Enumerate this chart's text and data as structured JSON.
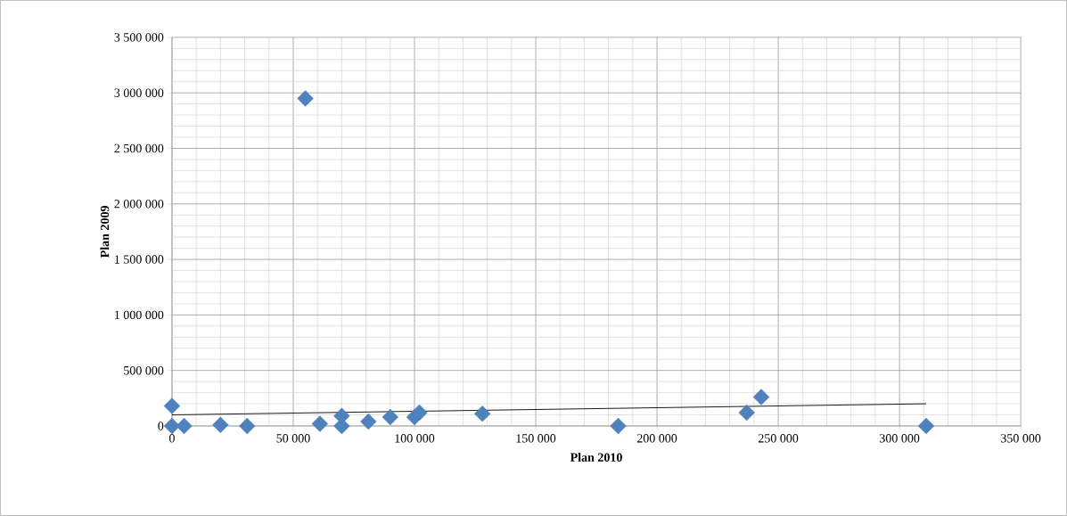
{
  "chart_data": {
    "type": "scatter",
    "xlabel": "Plan  2010",
    "ylabel": "Plan 2009",
    "series": [
      {
        "color": "#4f81bd",
        "marker": "diamond",
        "x": [
          0,
          0,
          5000,
          20000,
          31000,
          55000,
          61000,
          70000,
          70000,
          81000,
          90000,
          100000,
          102000,
          128000,
          184000,
          237000,
          243000,
          311000
        ],
        "values": [
          180000,
          0,
          0,
          10000,
          0,
          2950000,
          20000,
          90000,
          0,
          40000,
          80000,
          80000,
          120000,
          110000,
          0,
          120000,
          260000,
          0
        ]
      },
      {
        "type": "line",
        "color": "#000000",
        "marker": "none",
        "x": [
          0,
          311000
        ],
        "values": [
          100000,
          200000
        ]
      }
    ],
    "xlim": [
      0,
      350000
    ],
    "ylim": [
      0,
      3500000
    ],
    "xticks": [
      0,
      {
        "value": 50000,
        "label": "50 000"
      },
      {
        "value": 100000,
        "label": "100 000"
      },
      {
        "value": 150000,
        "label": "150 000"
      },
      {
        "value": 200000,
        "label": "200 000"
      },
      {
        "value": 250000,
        "label": "250 000"
      },
      {
        "value": 300000,
        "label": "300 000"
      },
      {
        "value": 350000,
        "label": "350 000"
      }
    ],
    "yticks": [
      0,
      {
        "value": 500000,
        "label": "500 000"
      },
      {
        "value": 1000000,
        "label": "1 000 000"
      },
      {
        "value": 1500000,
        "label": "1 500 000"
      },
      {
        "value": 2000000,
        "label": "2 000 000"
      },
      {
        "value": 2500000,
        "label": "2 500 000"
      },
      {
        "value": 3000000,
        "label": "3 000 000"
      },
      {
        "value": 3500000,
        "label": "3 500 000"
      }
    ],
    "grid": true
  }
}
